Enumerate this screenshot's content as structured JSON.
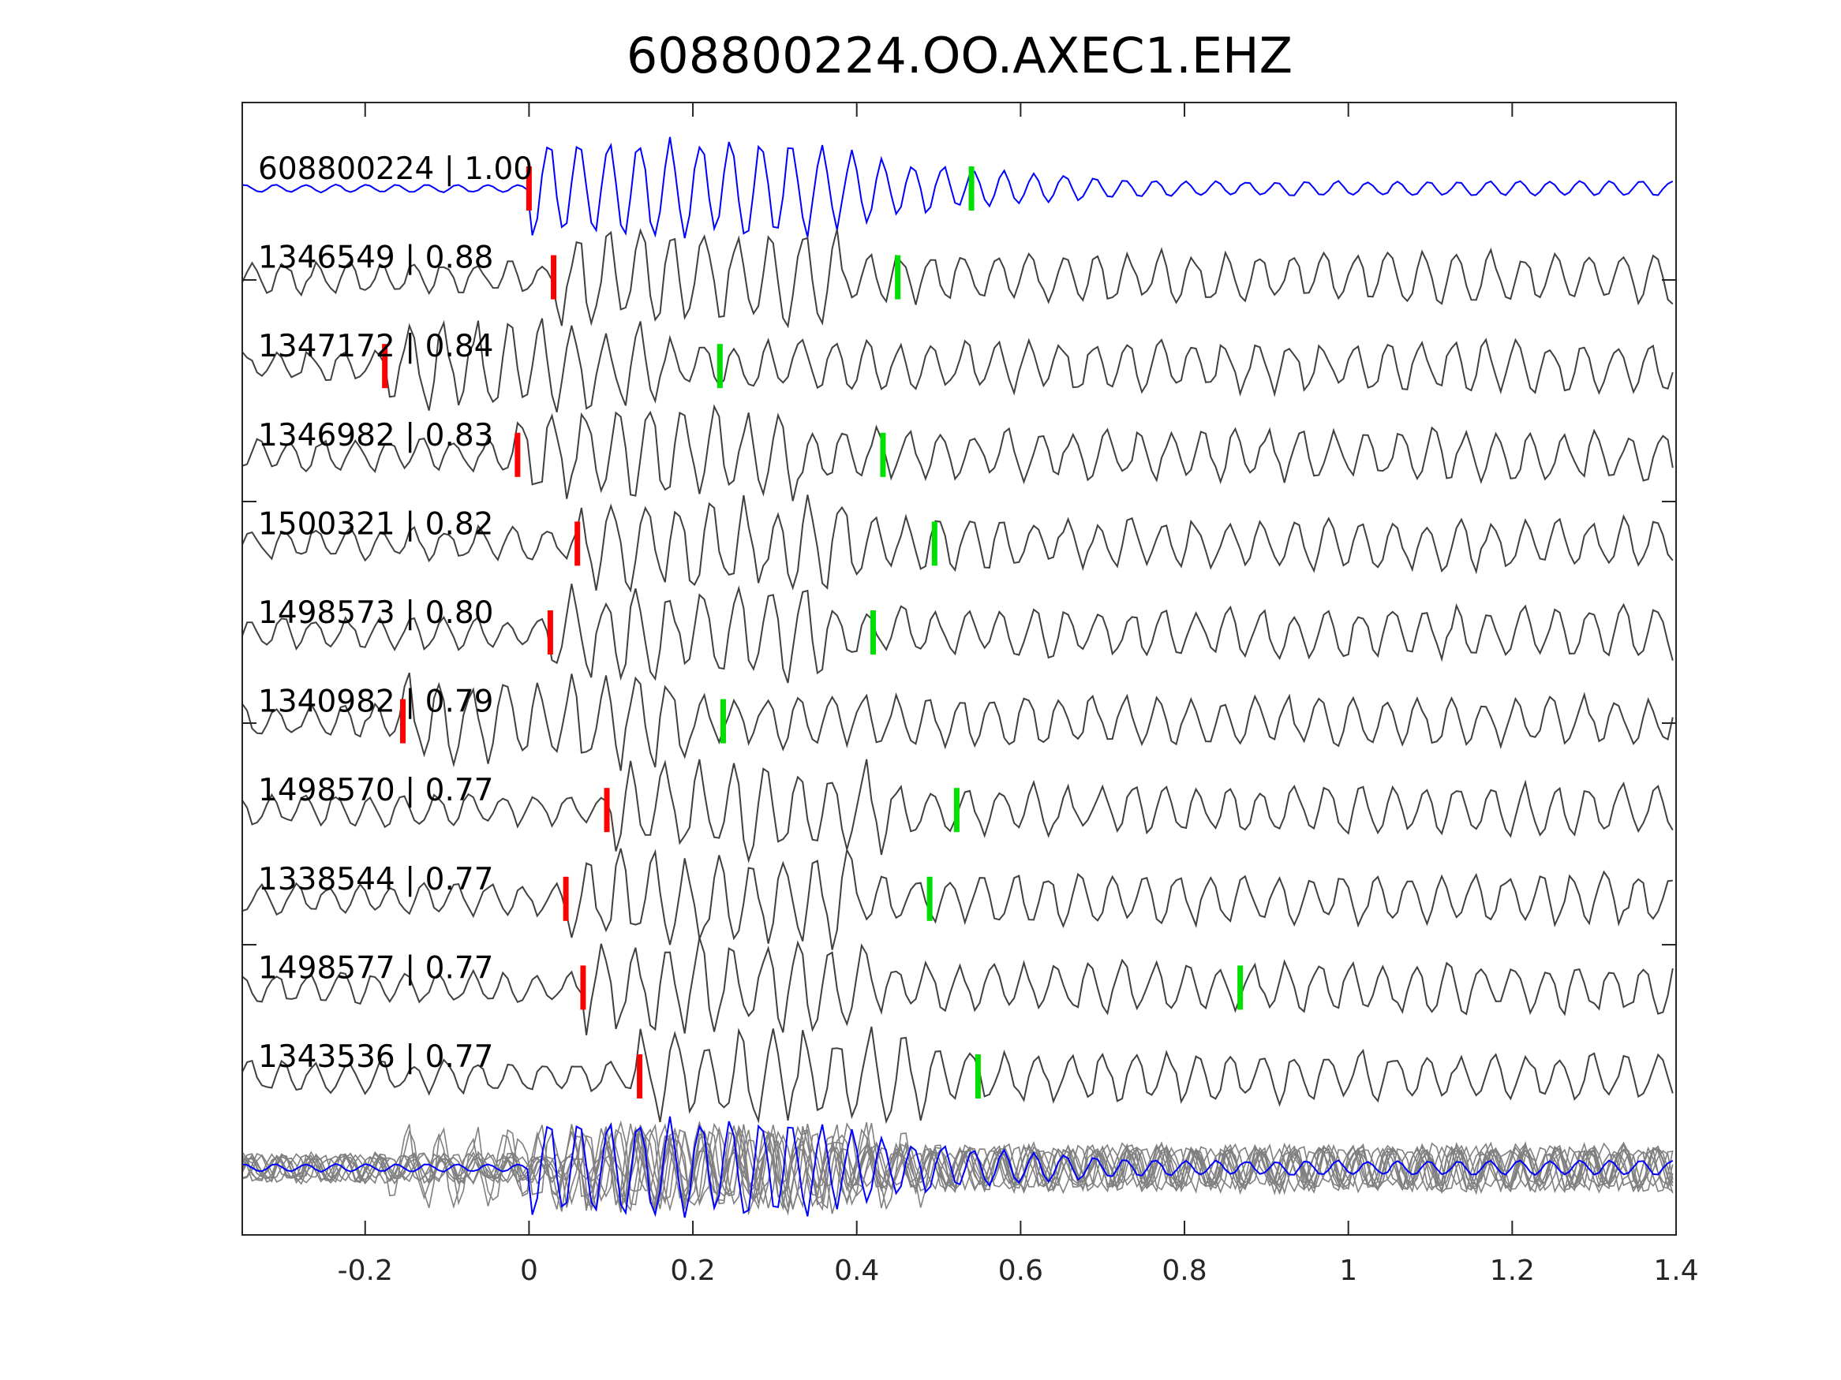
{
  "chart_data": {
    "type": "line",
    "title": "608800224.OO.AXEC1.EHZ",
    "xlabel": "",
    "ylabel": "",
    "xlim": [
      -0.35,
      1.4
    ],
    "xticks": [
      -0.2,
      0,
      0.2,
      0.4,
      0.6,
      0.8,
      1,
      1.2,
      1.4
    ],
    "xtick_labels": [
      "-0.2",
      "0",
      "0.2",
      "0.4",
      "0.6",
      "0.8",
      "1",
      "1.2",
      "1.4"
    ],
    "grid": false,
    "colors": {
      "template": "#0000ff",
      "match": "#404040",
      "stack": "#808080",
      "p_pick": "#ff0000",
      "s_pick": "#00e000"
    },
    "traces": [
      {
        "label": "608800224 | 1.00",
        "id": "608800224",
        "cc": 1.0,
        "p_pick": 0.0,
        "s_pick": 0.54,
        "template": true
      },
      {
        "label": "1346549 | 0.88",
        "id": "1346549",
        "cc": 0.88,
        "p_pick": 0.03,
        "s_pick": 0.45
      },
      {
        "label": "1347172 | 0.84",
        "id": "1347172",
        "cc": 0.84,
        "p_pick": -0.176,
        "s_pick": 0.233
      },
      {
        "label": "1346982 | 0.83",
        "id": "1346982",
        "cc": 0.83,
        "p_pick": -0.014,
        "s_pick": 0.432
      },
      {
        "label": "1500321 | 0.82",
        "id": "1500321",
        "cc": 0.82,
        "p_pick": 0.059,
        "s_pick": 0.495
      },
      {
        "label": "1498573 | 0.80",
        "id": "1498573",
        "cc": 0.8,
        "p_pick": 0.026,
        "s_pick": 0.42
      },
      {
        "label": "1340982 | 0.79",
        "id": "1340982",
        "cc": 0.79,
        "p_pick": -0.154,
        "s_pick": 0.237
      },
      {
        "label": "1498570 | 0.77",
        "id": "1498570",
        "cc": 0.77,
        "p_pick": 0.095,
        "s_pick": 0.522
      },
      {
        "label": "1338544 | 0.77",
        "id": "1338544",
        "cc": 0.77,
        "p_pick": 0.045,
        "s_pick": 0.489
      },
      {
        "label": "1498577 | 0.77",
        "id": "1498577",
        "cc": 0.77,
        "p_pick": 0.066,
        "s_pick": 0.868
      },
      {
        "label": "1343536 | 0.77",
        "id": "1343536",
        "cc": 0.77,
        "p_pick": 0.135,
        "s_pick": 0.548
      }
    ],
    "stack": {
      "description_shown": false
    }
  }
}
